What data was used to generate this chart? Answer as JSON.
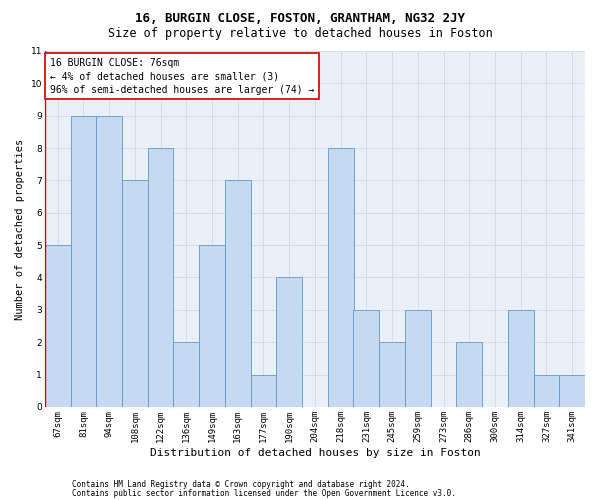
{
  "title": "16, BURGIN CLOSE, FOSTON, GRANTHAM, NG32 2JY",
  "subtitle": "Size of property relative to detached houses in Foston",
  "xlabel": "Distribution of detached houses by size in Foston",
  "ylabel": "Number of detached properties",
  "categories": [
    "67sqm",
    "81sqm",
    "94sqm",
    "108sqm",
    "122sqm",
    "136sqm",
    "149sqm",
    "163sqm",
    "177sqm",
    "190sqm",
    "204sqm",
    "218sqm",
    "231sqm",
    "245sqm",
    "259sqm",
    "273sqm",
    "286sqm",
    "300sqm",
    "314sqm",
    "327sqm",
    "341sqm"
  ],
  "values": [
    5,
    9,
    9,
    7,
    8,
    2,
    5,
    7,
    1,
    4,
    0,
    8,
    3,
    2,
    3,
    0,
    2,
    0,
    3,
    1,
    1
  ],
  "bar_color": "#c5d9f0",
  "bar_edge_color": "#5b9bd5",
  "annotation_text": "16 BURGIN CLOSE: 76sqm\n← 4% of detached houses are smaller (3)\n96% of semi-detached houses are larger (74) →",
  "annotation_box_color": "#ffffff",
  "annotation_box_edge_color": "#cc0000",
  "ylim": [
    0,
    11
  ],
  "yticks": [
    0,
    1,
    2,
    3,
    4,
    5,
    6,
    7,
    8,
    9,
    10,
    11
  ],
  "grid_color": "#d0d8e8",
  "background_color": "#eaf0f8",
  "footer_line1": "Contains HM Land Registry data © Crown copyright and database right 2024.",
  "footer_line2": "Contains public sector information licensed under the Open Government Licence v3.0.",
  "title_fontsize": 9,
  "subtitle_fontsize": 8.5,
  "xlabel_fontsize": 8,
  "ylabel_fontsize": 7.5,
  "tick_fontsize": 6.5,
  "footer_fontsize": 5.5,
  "annotation_fontsize": 7
}
